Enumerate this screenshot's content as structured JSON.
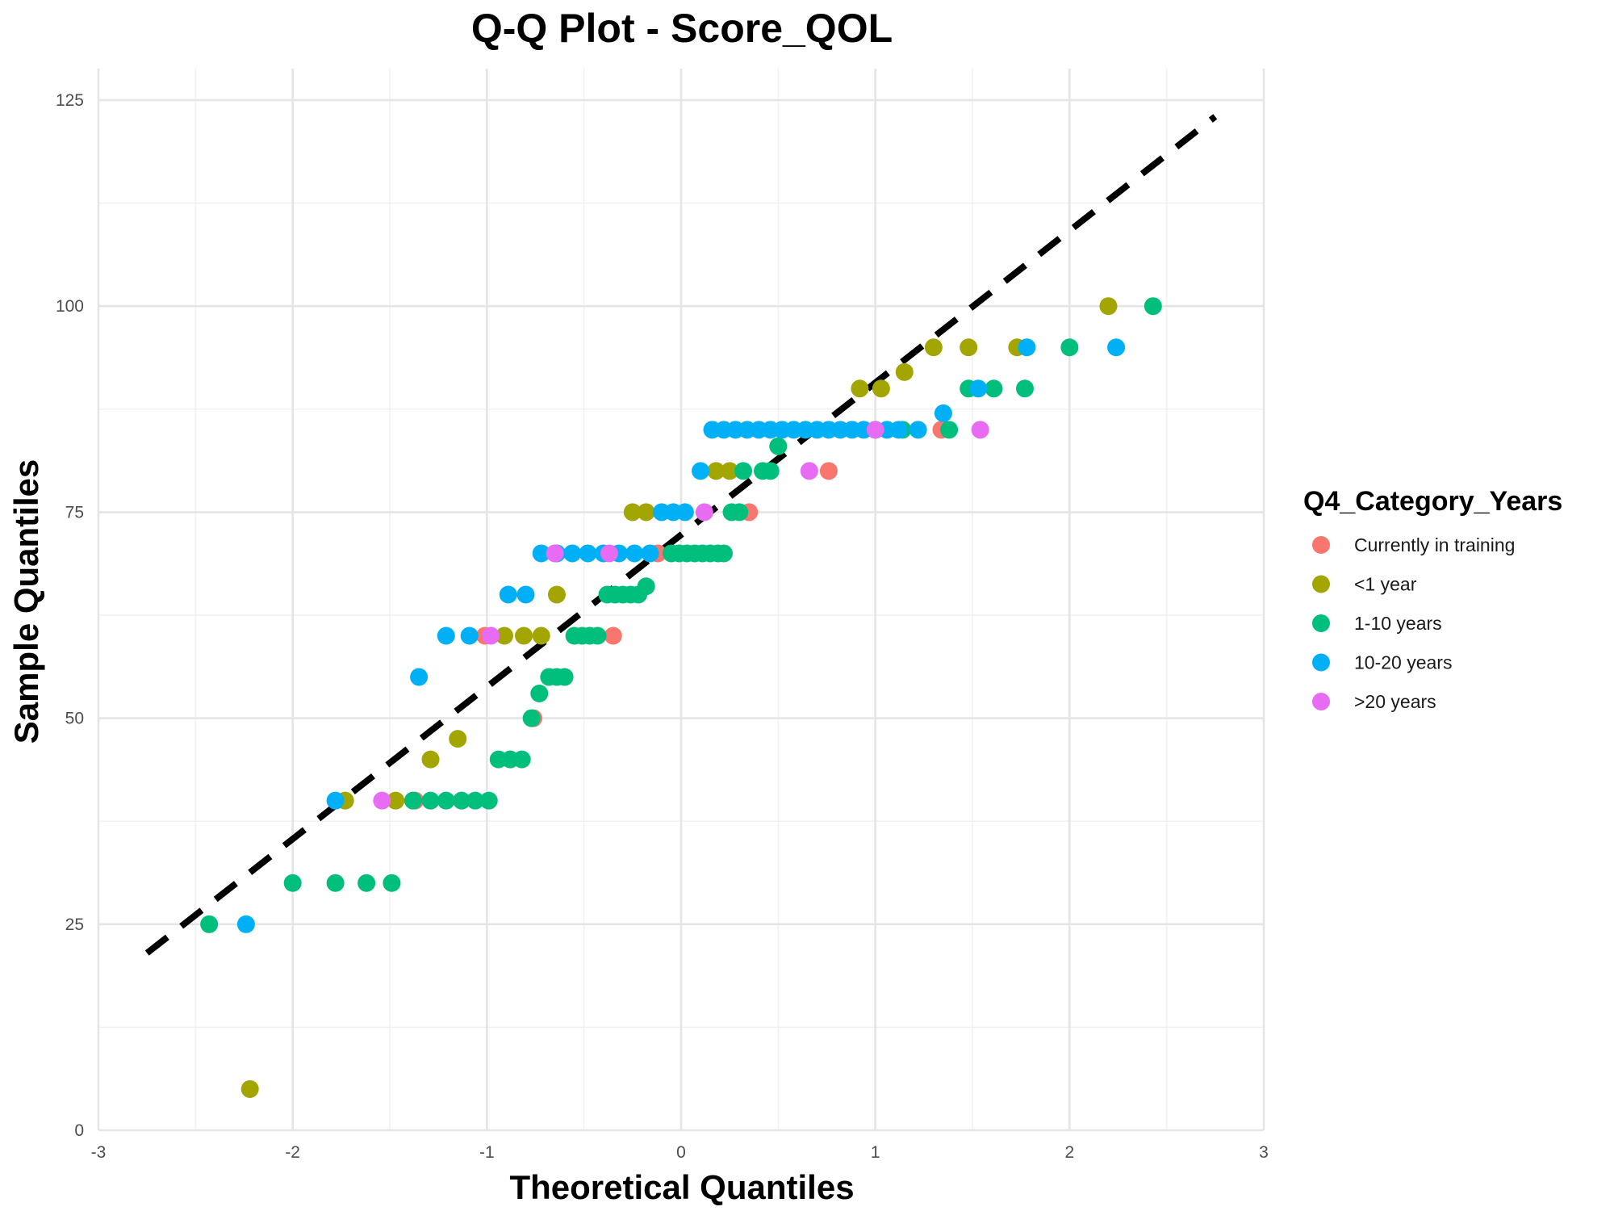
{
  "chart_data": {
    "type": "scatter",
    "title": "Q-Q Plot -  Score_QOL",
    "xlabel": "Theoretical Quantiles",
    "ylabel": "Sample Quantiles",
    "xlim": [
      -3,
      3
    ],
    "ylim": [
      0,
      125
    ],
    "x_ticks": [
      -3,
      -2,
      -1,
      0,
      1,
      2,
      3
    ],
    "y_ticks": [
      0,
      25,
      50,
      75,
      100,
      125
    ],
    "grid": true,
    "legend": {
      "title": "Q4_Category_Years",
      "position": "right"
    },
    "reference_line": {
      "style": "dashed",
      "color": "#000000",
      "x": [
        -2.75,
        2.75
      ],
      "y": [
        21.5,
        123
      ]
    },
    "series": [
      {
        "name": "Currently in training",
        "color": "#F8766D",
        "points": [
          [
            -1.37,
            40
          ],
          [
            -1.01,
            60
          ],
          [
            -0.76,
            50
          ],
          [
            -0.35,
            60
          ],
          [
            -0.12,
            70
          ],
          [
            0.35,
            75
          ],
          [
            0.76,
            80
          ],
          [
            1.34,
            85
          ]
        ]
      },
      {
        "name": "<1 year",
        "color": "#A3A500",
        "points": [
          [
            -2.22,
            5
          ],
          [
            -1.73,
            40
          ],
          [
            -1.47,
            40
          ],
          [
            -1.29,
            45
          ],
          [
            -1.15,
            47.5
          ],
          [
            -0.91,
            60
          ],
          [
            -0.81,
            60
          ],
          [
            -0.72,
            60
          ],
          [
            -0.64,
            65
          ],
          [
            -0.25,
            75
          ],
          [
            -0.18,
            75
          ],
          [
            0.18,
            80
          ],
          [
            0.25,
            80
          ],
          [
            0.92,
            90
          ],
          [
            1.03,
            90
          ],
          [
            1.15,
            92
          ],
          [
            1.3,
            95
          ],
          [
            1.48,
            95
          ],
          [
            1.73,
            95
          ],
          [
            2.2,
            100
          ]
        ]
      },
      {
        "name": "1-10 years",
        "color": "#00BF7D",
        "points": [
          [
            -2.43,
            25
          ],
          [
            -2.0,
            30
          ],
          [
            -1.78,
            30
          ],
          [
            -1.62,
            30
          ],
          [
            -1.49,
            30
          ],
          [
            -1.38,
            40
          ],
          [
            -1.29,
            40
          ],
          [
            -1.21,
            40
          ],
          [
            -1.13,
            40
          ],
          [
            -1.06,
            40
          ],
          [
            -0.99,
            40
          ],
          [
            -0.94,
            45
          ],
          [
            -0.88,
            45
          ],
          [
            -0.82,
            45
          ],
          [
            -0.77,
            50
          ],
          [
            -0.73,
            53
          ],
          [
            -0.68,
            55
          ],
          [
            -0.64,
            55
          ],
          [
            -0.6,
            55
          ],
          [
            -0.55,
            60
          ],
          [
            -0.51,
            60
          ],
          [
            -0.47,
            60
          ],
          [
            -0.43,
            60
          ],
          [
            -0.38,
            65
          ],
          [
            -0.34,
            65
          ],
          [
            -0.3,
            65
          ],
          [
            -0.26,
            65
          ],
          [
            -0.22,
            65
          ],
          [
            -0.18,
            66
          ],
          [
            -0.05,
            70
          ],
          [
            -0.01,
            70
          ],
          [
            0.03,
            70
          ],
          [
            0.07,
            70
          ],
          [
            0.11,
            70
          ],
          [
            0.15,
            70
          ],
          [
            0.19,
            70
          ],
          [
            0.22,
            70
          ],
          [
            0.26,
            75
          ],
          [
            0.3,
            75
          ],
          [
            0.32,
            80
          ],
          [
            0.42,
            80
          ],
          [
            0.46,
            80
          ],
          [
            0.5,
            83
          ],
          [
            1.14,
            85
          ],
          [
            1.38,
            85
          ],
          [
            1.48,
            90
          ],
          [
            1.61,
            90
          ],
          [
            1.77,
            90
          ],
          [
            2.0,
            95
          ],
          [
            2.43,
            100
          ]
        ]
      },
      {
        "name": "10-20 years",
        "color": "#00B0F6",
        "points": [
          [
            -2.24,
            25
          ],
          [
            -1.78,
            40
          ],
          [
            -1.35,
            55
          ],
          [
            -1.21,
            60
          ],
          [
            -1.09,
            60
          ],
          [
            -0.89,
            65
          ],
          [
            -0.8,
            65
          ],
          [
            -0.72,
            70
          ],
          [
            -0.64,
            70
          ],
          [
            -0.56,
            70
          ],
          [
            -0.48,
            70
          ],
          [
            -0.4,
            70
          ],
          [
            -0.32,
            70
          ],
          [
            -0.24,
            70
          ],
          [
            -0.16,
            70
          ],
          [
            -0.1,
            75
          ],
          [
            -0.04,
            75
          ],
          [
            0.02,
            75
          ],
          [
            0.1,
            80
          ],
          [
            0.16,
            85
          ],
          [
            0.22,
            85
          ],
          [
            0.28,
            85
          ],
          [
            0.34,
            85
          ],
          [
            0.4,
            85
          ],
          [
            0.46,
            85
          ],
          [
            0.52,
            85
          ],
          [
            0.58,
            85
          ],
          [
            0.64,
            85
          ],
          [
            0.7,
            85
          ],
          [
            0.76,
            85
          ],
          [
            0.82,
            85
          ],
          [
            0.88,
            85
          ],
          [
            0.94,
            85
          ],
          [
            1.0,
            85
          ],
          [
            1.06,
            85
          ],
          [
            1.12,
            85
          ],
          [
            1.22,
            85
          ],
          [
            1.35,
            87
          ],
          [
            1.53,
            90
          ],
          [
            1.78,
            95
          ],
          [
            2.24,
            95
          ]
        ]
      },
      {
        "name": ">20 years",
        "color": "#E76BF3",
        "points": [
          [
            -1.54,
            40
          ],
          [
            -0.98,
            60
          ],
          [
            -0.65,
            70
          ],
          [
            -0.37,
            70
          ],
          [
            0.12,
            75
          ],
          [
            0.66,
            80
          ],
          [
            1.0,
            85
          ],
          [
            1.54,
            85
          ]
        ]
      }
    ]
  }
}
